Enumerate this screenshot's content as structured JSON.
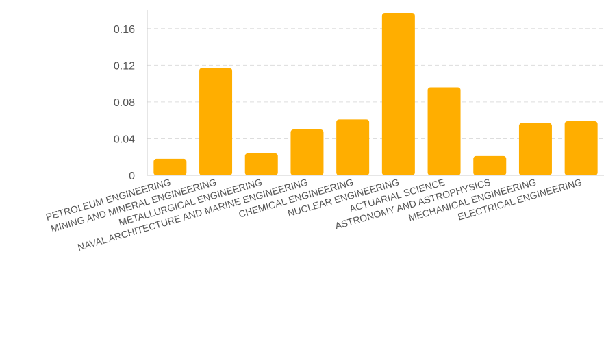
{
  "chart_data": {
    "type": "bar",
    "categories": [
      "PETROLEUM ENGINEERING",
      "MINING AND MINERAL ENGINEERING",
      "METALLURGICAL ENGINEERING",
      "NAVAL ARCHITECTURE AND MARINE ENGINEERING",
      "CHEMICAL ENGINEERING",
      "NUCLEAR ENGINEERING",
      "ACTUARIAL SCIENCE",
      "ASTRONOMY AND ASTROPHYSICS",
      "MECHANICAL ENGINEERING",
      "ELECTRICAL ENGINEERING"
    ],
    "values": [
      0.018,
      0.117,
      0.024,
      0.05,
      0.061,
      0.177,
      0.096,
      0.021,
      0.057,
      0.059
    ],
    "yticks": [
      "0",
      "0.04",
      "0.08",
      "0.12",
      "0.16"
    ],
    "ylim": [
      0,
      0.18
    ],
    "grid": true,
    "bar_color": "#FFAE00"
  }
}
